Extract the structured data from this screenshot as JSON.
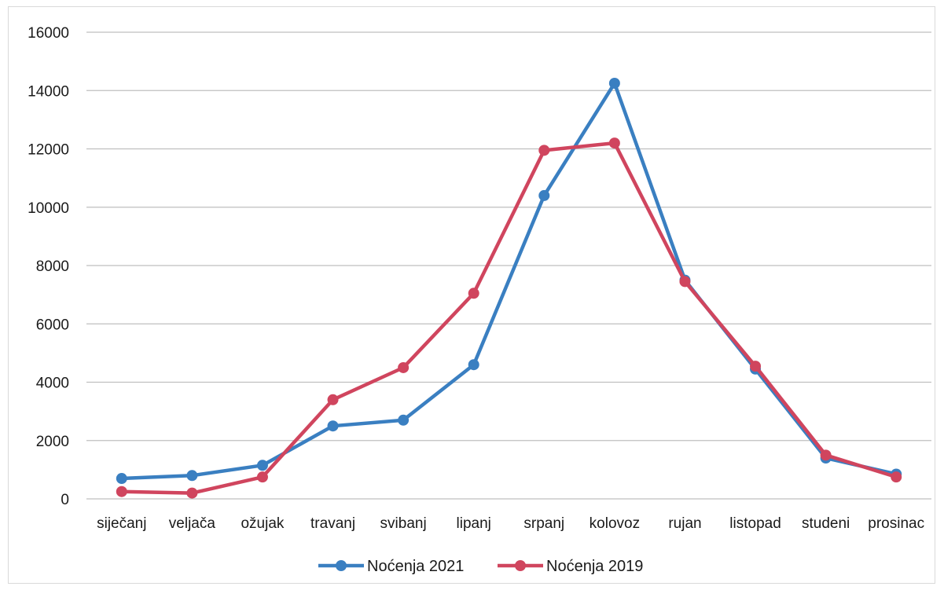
{
  "chart_data": {
    "type": "line",
    "title": "",
    "xlabel": "",
    "ylabel": "",
    "categories": [
      "siječanj",
      "veljača",
      "ožujak",
      "travanj",
      "svibanj",
      "lipanj",
      "srpanj",
      "kolovoz",
      "rujan",
      "listopad",
      "studeni",
      "prosinac"
    ],
    "yticks": [
      "0",
      "2000",
      "4000",
      "6000",
      "8000",
      "10000",
      "12000",
      "14000",
      "16000"
    ],
    "ylim": [
      0,
      16000
    ],
    "grid": true,
    "legend_position": "bottom",
    "series": [
      {
        "name": "Noćenja 2021",
        "color": "#3a7fc1",
        "values": [
          700,
          800,
          1150,
          2500,
          2700,
          4600,
          10400,
          14250,
          7500,
          4450,
          1400,
          850
        ]
      },
      {
        "name": "Noćenja 2019",
        "color": "#d0455e",
        "values": [
          250,
          200,
          750,
          3400,
          4500,
          7050,
          11950,
          12200,
          7450,
          4550,
          1500,
          750
        ]
      }
    ]
  }
}
